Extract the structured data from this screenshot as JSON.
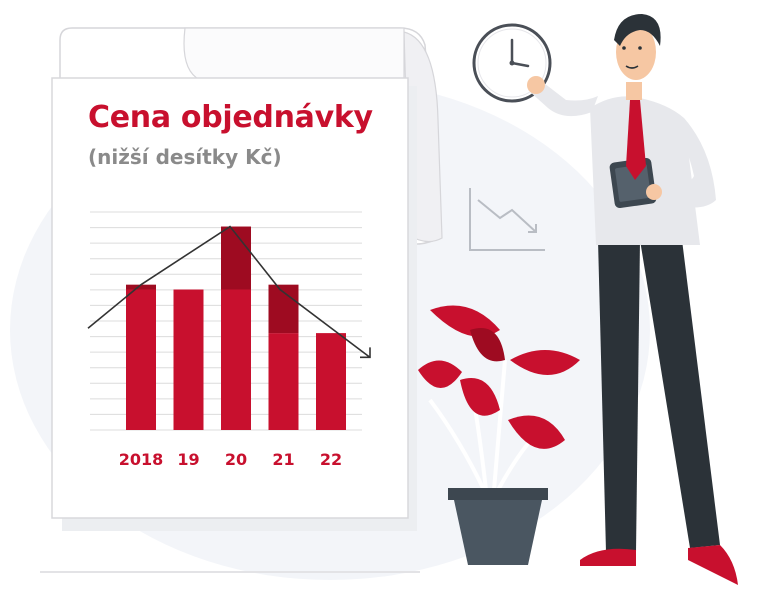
{
  "title": "Cena objednávky",
  "subtitle": "(nižší desítky Kč)",
  "colors": {
    "accent": "#c8102e",
    "accent_dark": "#9e0b21",
    "subtitle_gray": "#8a8a8a",
    "paper": "#ffffff",
    "paper_shadow": "#e9e9ec",
    "grid": "#dcdcdc",
    "trend": "#333333",
    "pot": "#4a5661",
    "trousers": "#2b3238",
    "shirt": "#e7e8ec"
  },
  "illustration": {
    "icons": [
      "wall-clock-icon",
      "downtrend-chart-icon",
      "tablet-icon",
      "potted-plant"
    ]
  },
  "chart_data": {
    "type": "bar",
    "categories": [
      "2018",
      "19",
      "20",
      "21",
      "22"
    ],
    "values": [
      60,
      58,
      84,
      60,
      40
    ],
    "upper_segment": [
      2,
      0,
      26,
      20,
      0
    ],
    "trend_line": [
      42,
      60,
      84,
      58,
      30
    ],
    "ylim": [
      0,
      90
    ],
    "grid": true,
    "legend": "none"
  }
}
